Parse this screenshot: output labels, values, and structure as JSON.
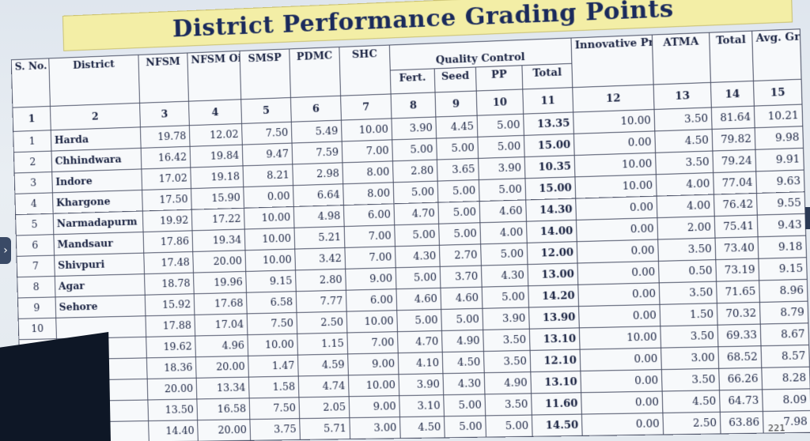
{
  "title": "District Performance Grading Points",
  "page_number": "221",
  "headers": {
    "sno": "S. No.",
    "district": "District",
    "nfsm": "NFSM",
    "nfsm_oilseed": "NFSM Oil Seed",
    "smsp": "SMSP",
    "pdmc": "PDMC",
    "shc": "SHC",
    "quality_control": "Quality Control",
    "fert": "Fert.",
    "seed": "Seed",
    "pp": "PP",
    "qc_total": "Total",
    "innovative": "Innovative Practices",
    "atma": "ATMA",
    "total": "Total",
    "avg_grade": "Avg. Grade"
  },
  "column_numbers": [
    "1",
    "2",
    "3",
    "4",
    "5",
    "6",
    "7",
    "8",
    "9",
    "10",
    "11",
    "12",
    "13",
    "14",
    "15"
  ],
  "rows": [
    [
      "1",
      "Harda",
      "19.78",
      "12.02",
      "7.50",
      "5.49",
      "10.00",
      "3.90",
      "4.45",
      "5.00",
      "13.35",
      "10.00",
      "3.50",
      "81.64",
      "10.21"
    ],
    [
      "2",
      "Chhindwara",
      "16.42",
      "19.84",
      "9.47",
      "7.59",
      "7.00",
      "5.00",
      "5.00",
      "5.00",
      "15.00",
      "0.00",
      "4.50",
      "79.82",
      "9.98"
    ],
    [
      "3",
      "Indore",
      "17.02",
      "19.18",
      "8.21",
      "2.98",
      "8.00",
      "2.80",
      "3.65",
      "3.90",
      "10.35",
      "10.00",
      "3.50",
      "79.24",
      "9.91"
    ],
    [
      "4",
      "Khargone",
      "17.50",
      "15.90",
      "0.00",
      "6.64",
      "8.00",
      "5.00",
      "5.00",
      "5.00",
      "15.00",
      "10.00",
      "4.00",
      "77.04",
      "9.63"
    ],
    [
      "5",
      "Narmadapurm",
      "19.92",
      "17.22",
      "10.00",
      "4.98",
      "6.00",
      "4.70",
      "5.00",
      "4.60",
      "14.30",
      "0.00",
      "4.00",
      "76.42",
      "9.55"
    ],
    [
      "6",
      "Mandsaur",
      "17.86",
      "19.34",
      "10.00",
      "5.21",
      "7.00",
      "5.00",
      "5.00",
      "4.00",
      "14.00",
      "0.00",
      "2.00",
      "75.41",
      "9.43"
    ],
    [
      "7",
      "Shivpuri",
      "17.48",
      "20.00",
      "10.00",
      "3.42",
      "7.00",
      "4.30",
      "2.70",
      "5.00",
      "12.00",
      "0.00",
      "3.50",
      "73.40",
      "9.18"
    ],
    [
      "8",
      "Agar",
      "18.78",
      "19.96",
      "9.15",
      "2.80",
      "9.00",
      "5.00",
      "3.70",
      "4.30",
      "13.00",
      "0.00",
      "0.50",
      "73.19",
      "9.15"
    ],
    [
      "9",
      "Sehore",
      "15.92",
      "17.68",
      "6.58",
      "7.77",
      "6.00",
      "4.60",
      "4.60",
      "5.00",
      "14.20",
      "0.00",
      "3.50",
      "71.65",
      "8.96"
    ],
    [
      "10",
      "",
      "17.88",
      "17.04",
      "7.50",
      "2.50",
      "10.00",
      "5.00",
      "5.00",
      "3.90",
      "13.90",
      "0.00",
      "1.50",
      "70.32",
      "8.79"
    ],
    [
      "",
      "",
      "19.62",
      "4.96",
      "10.00",
      "1.15",
      "7.00",
      "4.70",
      "4.90",
      "3.50",
      "13.10",
      "10.00",
      "3.50",
      "69.33",
      "8.67"
    ],
    [
      "",
      "",
      "18.36",
      "20.00",
      "1.47",
      "4.59",
      "9.00",
      "4.10",
      "4.50",
      "3.50",
      "12.10",
      "0.00",
      "3.00",
      "68.52",
      "8.57"
    ],
    [
      "",
      "",
      "20.00",
      "13.34",
      "1.58",
      "4.74",
      "10.00",
      "3.90",
      "4.30",
      "4.90",
      "13.10",
      "0.00",
      "3.50",
      "66.26",
      "8.28"
    ],
    [
      "",
      "",
      "13.50",
      "16.58",
      "7.50",
      "2.05",
      "9.00",
      "3.10",
      "5.00",
      "3.50",
      "11.60",
      "0.00",
      "4.50",
      "64.73",
      "8.09"
    ],
    [
      "",
      "",
      "14.40",
      "20.00",
      "3.75",
      "5.71",
      "3.00",
      "4.50",
      "5.00",
      "5.00",
      "14.50",
      "0.00",
      "2.50",
      "63.86",
      "7.98"
    ]
  ]
}
